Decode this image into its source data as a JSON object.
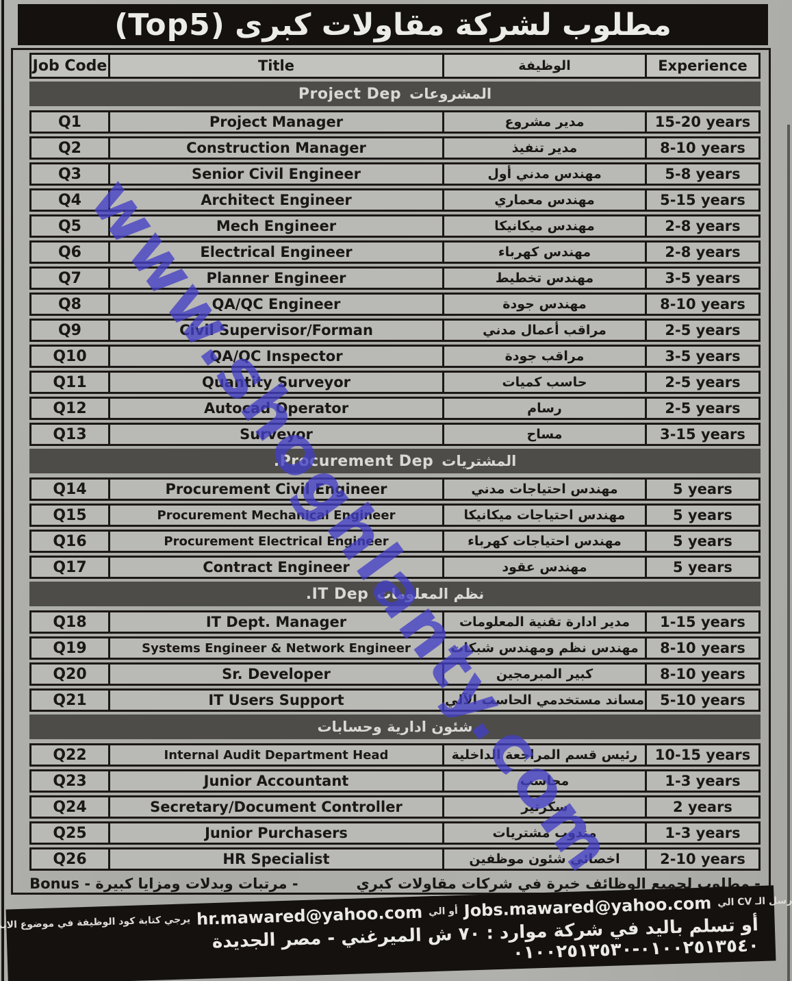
{
  "ad": {
    "title": "مطلوب لشركة مقاولات كبرى (Top5)",
    "watermark": "www.shoghlanty.com"
  },
  "table": {
    "headers": {
      "job_code": "Job Code",
      "title": "Title",
      "job_ar": "الوظيفة",
      "experience": "Experience"
    },
    "sections": [
      {
        "label_ar": "المشروعات",
        "label_en": "Project Dep",
        "rows": [
          {
            "code": "Q1",
            "title": "Project Manager",
            "job_ar": "مدير مشروع",
            "exp": "15-20 years"
          },
          {
            "code": "Q2",
            "title": "Construction Manager",
            "job_ar": "مدير تنفيذ",
            "exp": "8-10 years"
          },
          {
            "code": "Q3",
            "title": "Senior Civil Engineer",
            "job_ar": "مهندس مدني أول",
            "exp": "5-8 years"
          },
          {
            "code": "Q4",
            "title": "Architect Engineer",
            "job_ar": "مهندس معماري",
            "exp": "5-15 years"
          },
          {
            "code": "Q5",
            "title": "Mech Engineer",
            "job_ar": "مهندس ميكانيكا",
            "exp": "2-8 years"
          },
          {
            "code": "Q6",
            "title": "Electrical Engineer",
            "job_ar": "مهندس كهرباء",
            "exp": "2-8 years"
          },
          {
            "code": "Q7",
            "title": "Planner Engineer",
            "job_ar": "مهندس تخطيط",
            "exp": "3-5 years"
          },
          {
            "code": "Q8",
            "title": "QA/QC Engineer",
            "job_ar": "مهندس جودة",
            "exp": "8-10 years"
          },
          {
            "code": "Q9",
            "title": "Civil Supervisor/Forman",
            "job_ar": "مراقب أعمال مدني",
            "exp": "2-5 years"
          },
          {
            "code": "Q10",
            "title": "QA/QC Inspector",
            "job_ar": "مراقب جودة",
            "exp": "3-5 years"
          },
          {
            "code": "Q11",
            "title": "Quantity Surveyor",
            "job_ar": "حاسب كميات",
            "exp": "2-5 years"
          },
          {
            "code": "Q12",
            "title": "Autocad Operator",
            "job_ar": "رسام",
            "exp": "2-5 years"
          },
          {
            "code": "Q13",
            "title": "Surveyor",
            "job_ar": "مساح",
            "exp": "3-15 years"
          }
        ]
      },
      {
        "label_ar": "المشتريات",
        "label_en": "Procurement Dep.",
        "rows": [
          {
            "code": "Q14",
            "title": "Procurement Civil Engineer",
            "job_ar": "مهندس احتياجات مدني",
            "exp": "5 years"
          },
          {
            "code": "Q15",
            "title": "Procurement Mechanical Engineer",
            "job_ar": "مهندس احتياجات ميكانيكا",
            "exp": "5 years"
          },
          {
            "code": "Q16",
            "title": "Procurement Electrical Engineer",
            "job_ar": "مهندس احتياجات كهرباء",
            "exp": "5 years"
          },
          {
            "code": "Q17",
            "title": "Contract Engineer",
            "job_ar": "مهندس عقود",
            "exp": "5 years"
          }
        ]
      },
      {
        "label_ar": "نظم المعلومات",
        "label_en": "IT Dep.",
        "rows": [
          {
            "code": "Q18",
            "title": "IT Dept. Manager",
            "job_ar": "مدير ادارة تقنية المعلومات",
            "exp": "1-15 years"
          },
          {
            "code": "Q19",
            "title": "Systems Engineer & Network Engineer",
            "job_ar": "مهندس نظم ومهندس شبكات",
            "exp": "8-10 years"
          },
          {
            "code": "Q20",
            "title": "Sr. Developer",
            "job_ar": "كبير المبرمجين",
            "exp": "8-10 years"
          },
          {
            "code": "Q21",
            "title": "IT Users Support",
            "job_ar": "مساند مستخدمي الحاسب الآلي",
            "exp": "5-10 years"
          }
        ]
      },
      {
        "label_ar": "شئون ادارية وحسابات",
        "label_en": "",
        "rows": [
          {
            "code": "Q22",
            "title": "Internal Audit Department Head",
            "job_ar": "رئيس قسم المراجعة الداخلية",
            "exp": "10-15 years"
          },
          {
            "code": "Q23",
            "title": "Junior Accountant",
            "job_ar": "محاسب",
            "exp": "1-3 years"
          },
          {
            "code": "Q24",
            "title": "Secretary/Document Controller",
            "job_ar": "سكرتير",
            "exp": "2 years"
          },
          {
            "code": "Q25",
            "title": "Junior Purchasers",
            "job_ar": "مندوب مشتريات",
            "exp": "1-3 years"
          },
          {
            "code": "Q26",
            "title": "HR Specialist",
            "job_ar": "اخصائي شئون موظفين",
            "exp": "2-10 years"
          }
        ]
      }
    ]
  },
  "footer": {
    "note_experience": "- مطلوب لجميع الوظائف خبرة في شركات مقاولات كبري",
    "note_salary": "- مرتبات وبدلات ومزايا كبيرة - Bonus",
    "send_prefix": "ترسل الـ CV الي",
    "email_jobs": "Jobs.mawared@yahoo.com",
    "send_or": "أو الي",
    "email_hr": "hr.mawared@yahoo.com",
    "send_suffix": "يرجي كتابة كود الوظيفة في موضوع الايميل",
    "address_line": "أو تسلم باليد في شركة موارد : ٧٠ ش الميرغني - مصر الجديدة ٠١٠٠٢٥١٣٥٤٠-٠١٠٠٢٥١٣٥٣٠"
  }
}
